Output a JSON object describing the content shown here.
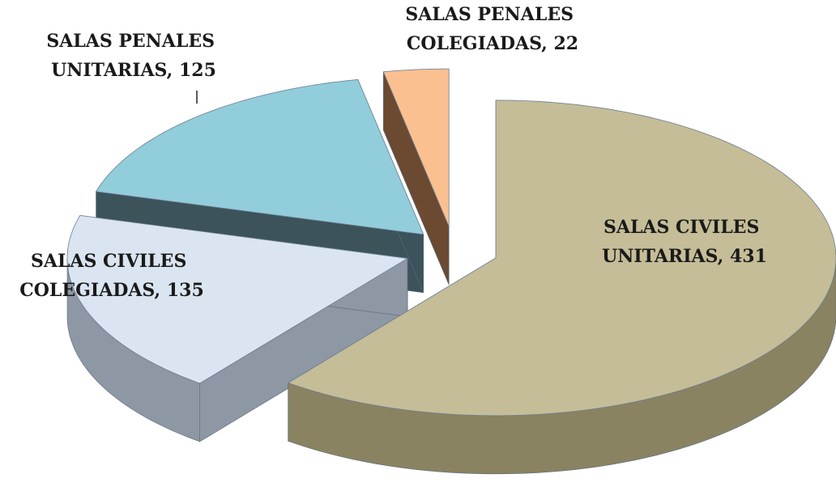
{
  "chart_data": {
    "type": "pie3d",
    "value_labels": [
      "SALAS CIVILES UNITARIAS, 431",
      "SALAS CIVILES COLEGIADAS, 135",
      "SALAS PENALES UNITARIAS, 125",
      "SALAS PENALES COLEGIADAS, 22"
    ],
    "values": [
      431,
      135,
      125,
      22
    ],
    "colors": [
      "#c4bd97",
      "#dbe5f1",
      "#92cddc",
      "#fac090"
    ],
    "side_colors": [
      "#8a8362",
      "#8e97a4",
      "#3c535b",
      "#6b4a31"
    ]
  }
}
